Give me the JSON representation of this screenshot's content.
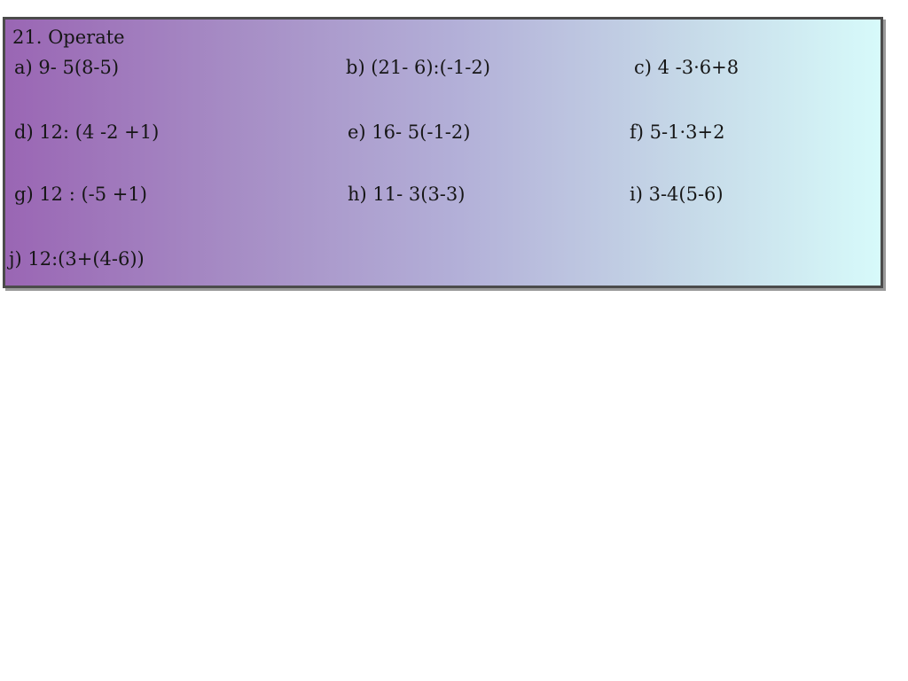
{
  "exercise": {
    "title": "21. Operate",
    "items": [
      {
        "id": "a",
        "text": "a) 9- 5(8-5)"
      },
      {
        "id": "b",
        "text": "b) (21- 6):(-1-2)"
      },
      {
        "id": "c",
        "text": "c) 4 -3·6+8"
      },
      {
        "id": "d",
        "text": "d) 12: (4 -2 +1)"
      },
      {
        "id": "e",
        "text": "e) 16- 5(-1-2)"
      },
      {
        "id": "f",
        "text": "f) 5-1·3+2"
      },
      {
        "id": "g",
        "text": "g) 12 : (-5 +1)"
      },
      {
        "id": "h",
        "text": "h) 11- 3(3-3)"
      },
      {
        "id": "i",
        "text": "i) 3-4(5-6)"
      },
      {
        "id": "j",
        "text": "j) 12:(3+(4-6))"
      }
    ],
    "colors": {
      "gradient_left": "#9a66b4",
      "gradient_middle": "#b3b0d8",
      "gradient_right": "#d7fafa",
      "border": "#4b4b4b",
      "shadow": "#9a9a9a",
      "text": "#161616"
    }
  }
}
